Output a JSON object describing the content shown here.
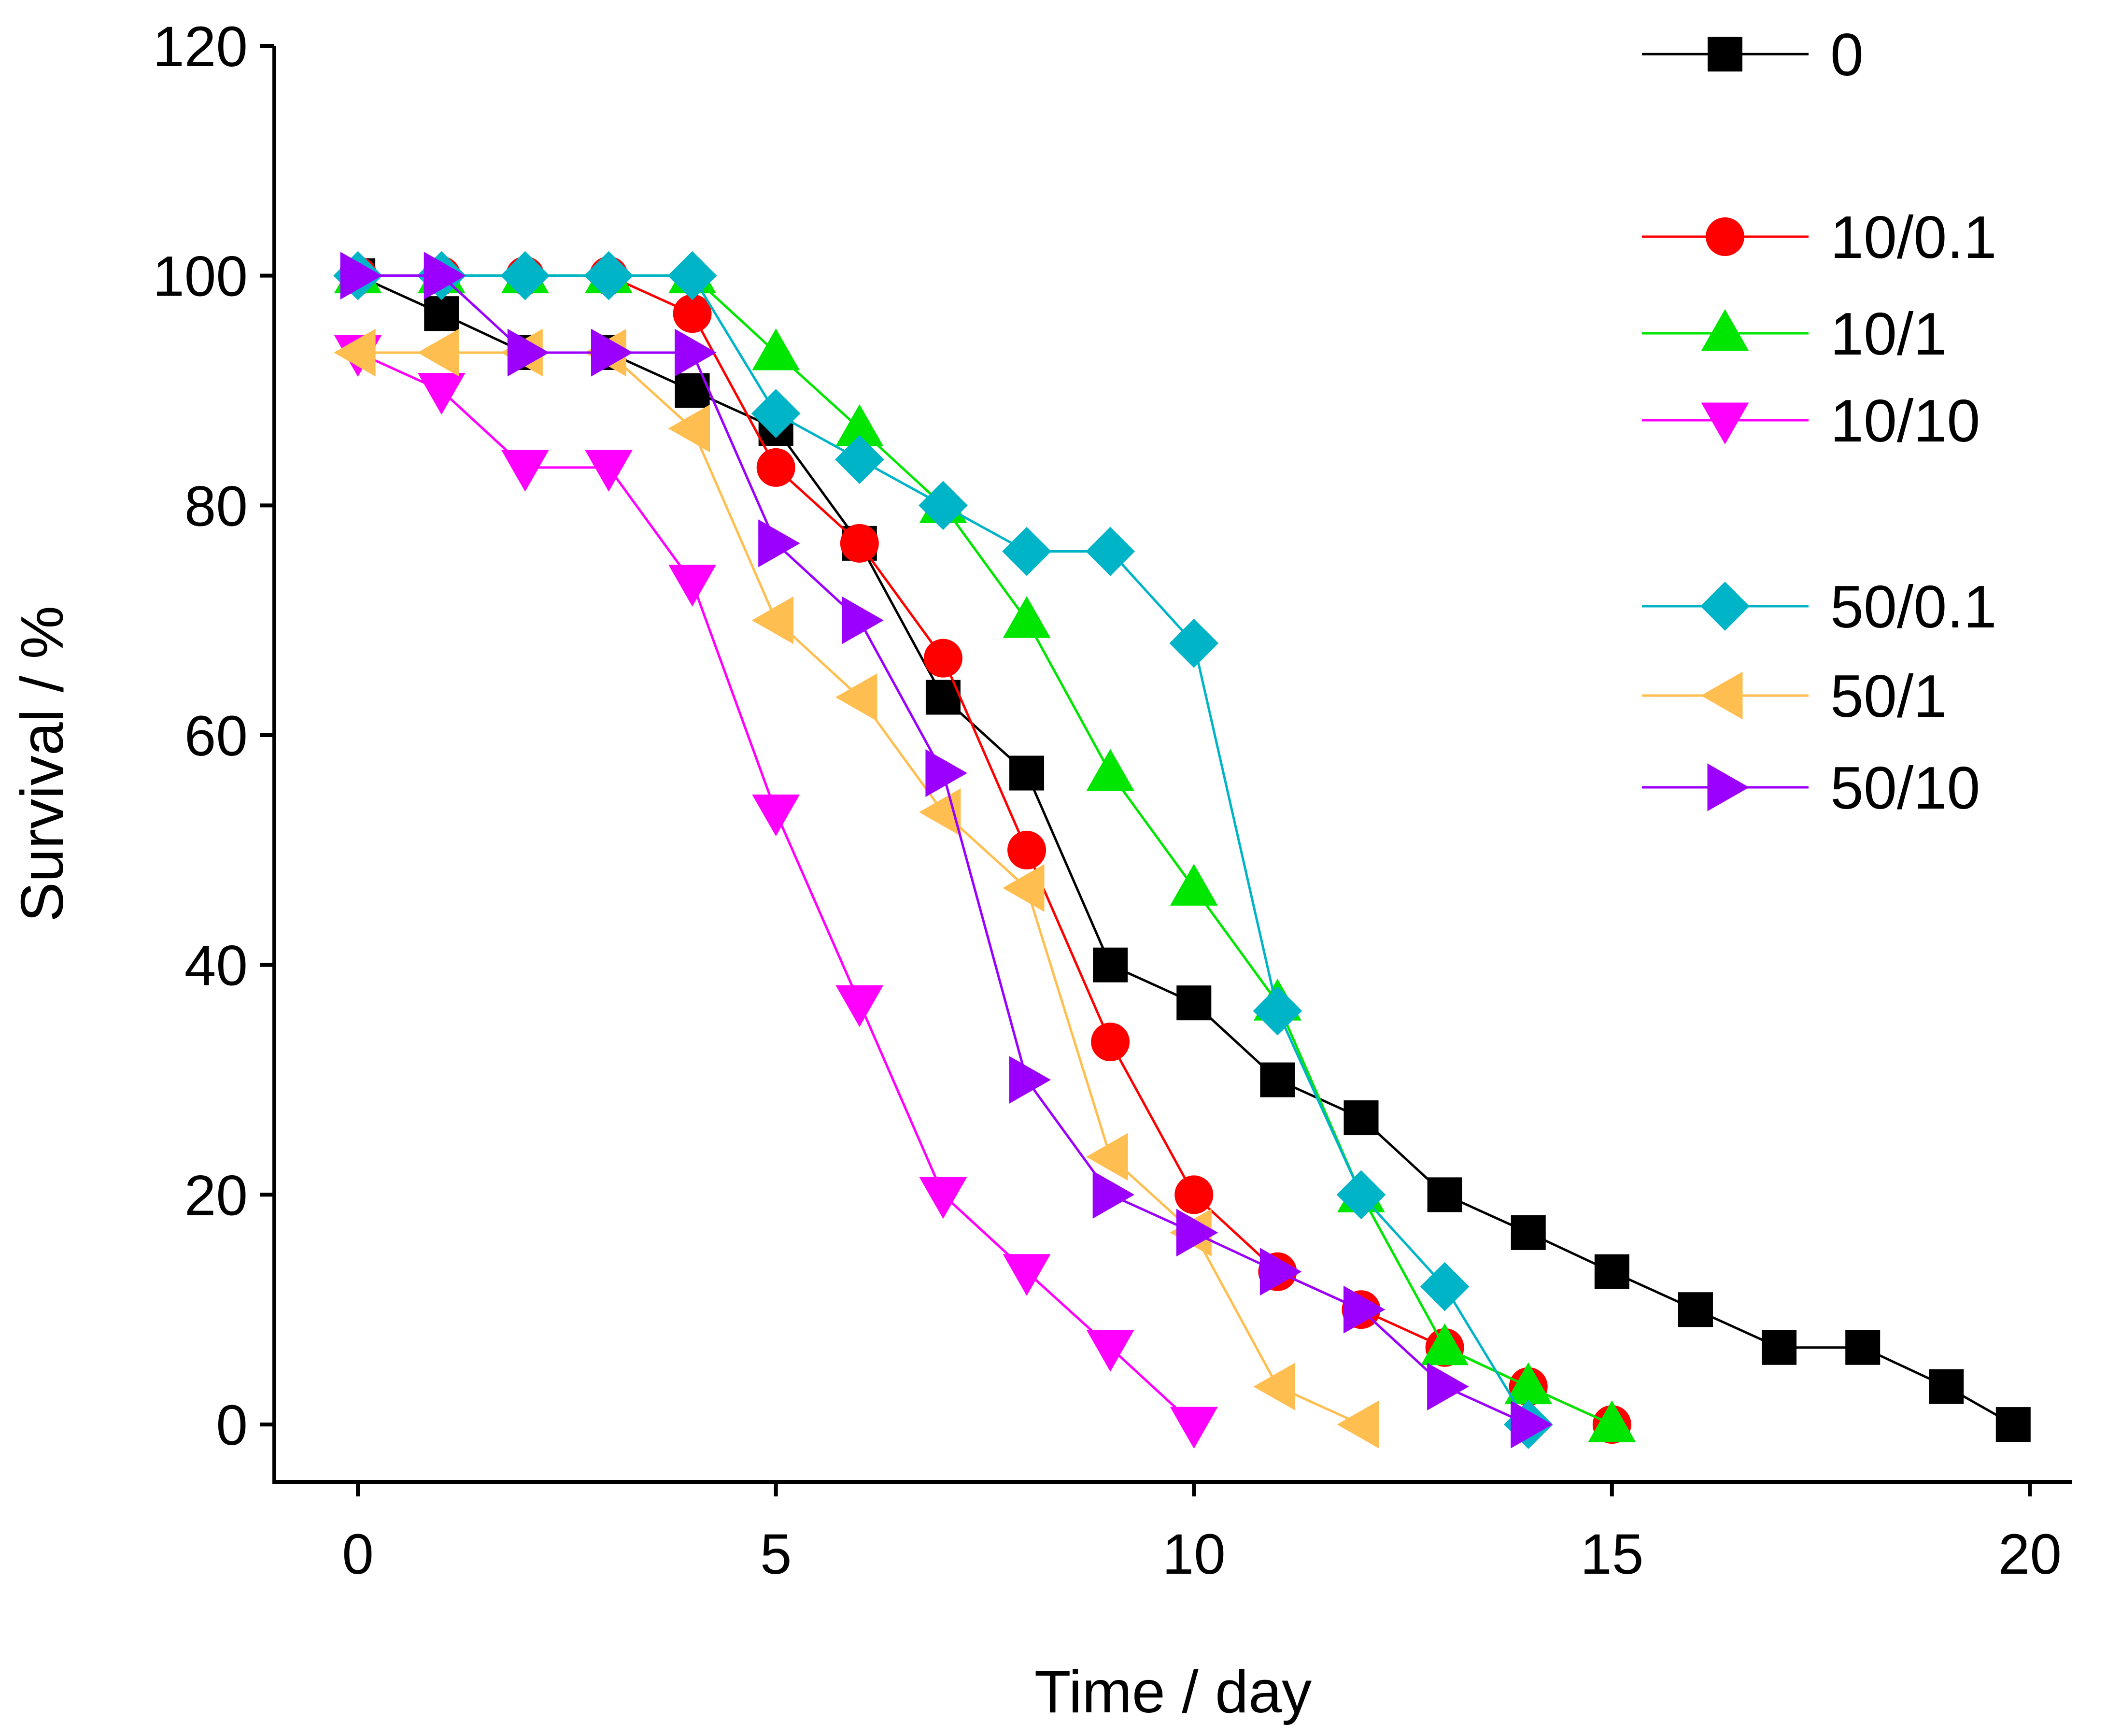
{
  "chart_data": {
    "type": "line",
    "title": "",
    "xlabel": "Time / day",
    "ylabel": "Survival / %",
    "xlim": [
      -1,
      20.5
    ],
    "ylim": [
      -5,
      120
    ],
    "xticks": [
      0,
      5,
      10,
      15,
      20
    ],
    "yticks": [
      0,
      20,
      40,
      60,
      80,
      100,
      120
    ],
    "grid": false,
    "legend_position": "top-right",
    "series": [
      {
        "name": "0",
        "color": "#000000",
        "marker": "square",
        "x": [
          0,
          1,
          2,
          3,
          4,
          5,
          6,
          7,
          8,
          9,
          10,
          11,
          12,
          13,
          14,
          15,
          16,
          17,
          18,
          19,
          19.8
        ],
        "y": [
          100,
          96.7,
          93.3,
          93.3,
          90,
          86.7,
          76.7,
          63.3,
          56.7,
          40,
          36.7,
          30,
          26.7,
          20,
          16.7,
          13.3,
          10,
          6.7,
          6.7,
          3.3,
          0
        ]
      },
      {
        "name": "10/0.1",
        "color": "#ff0000",
        "marker": "circle",
        "x": [
          0,
          1,
          2,
          3,
          4,
          5,
          6,
          7,
          8,
          9,
          10,
          11,
          12,
          13,
          14,
          15
        ],
        "y": [
          100,
          100,
          100,
          100,
          96.7,
          83.3,
          76.7,
          66.7,
          50,
          33.3,
          20,
          13.3,
          10,
          6.7,
          3.3,
          0
        ]
      },
      {
        "name": "10/1",
        "color": "#00e600",
        "marker": "triangle-up",
        "x": [
          0,
          1,
          2,
          3,
          4,
          5,
          6,
          7,
          8,
          9,
          10,
          11,
          12,
          13,
          14,
          15
        ],
        "y": [
          100,
          100,
          100,
          100,
          100,
          93.3,
          86.7,
          80,
          70,
          56.7,
          46.7,
          36.7,
          20,
          6.7,
          3.3,
          0
        ]
      },
      {
        "name": "10/10",
        "color": "#ff00ff",
        "marker": "triangle-down",
        "x": [
          0,
          1,
          2,
          3,
          4,
          5,
          6,
          7,
          8,
          9,
          10
        ],
        "y": [
          93.3,
          90,
          83.3,
          83.3,
          73.3,
          53.3,
          36.7,
          20,
          13.3,
          6.7,
          0
        ]
      },
      {
        "name": "50/0.1",
        "color": "#00b4c8",
        "marker": "diamond",
        "x": [
          0,
          1,
          2,
          3,
          4,
          5,
          6,
          7,
          8,
          9,
          10,
          11,
          12,
          13,
          14
        ],
        "y": [
          100,
          100,
          100,
          100,
          100,
          88,
          84,
          80,
          76,
          76,
          68,
          36,
          20,
          12,
          0
        ]
      },
      {
        "name": "50/1",
        "color": "#ffbe50",
        "marker": "triangle-left",
        "x": [
          0,
          1,
          2,
          3,
          4,
          5,
          6,
          7,
          8,
          9,
          10,
          11,
          12
        ],
        "y": [
          93.3,
          93.3,
          93.3,
          93.3,
          86.7,
          70,
          63.3,
          53.3,
          46.7,
          23.3,
          16.7,
          3.3,
          0
        ]
      },
      {
        "name": "50/10",
        "color": "#9b00ff",
        "marker": "triangle-right",
        "x": [
          0,
          1,
          2,
          3,
          4,
          5,
          6,
          7,
          8,
          9,
          10,
          11,
          12,
          13,
          14
        ],
        "y": [
          100,
          100,
          93.3,
          93.3,
          93.3,
          76.7,
          70,
          56.7,
          30,
          20,
          16.7,
          13.3,
          10,
          3.3,
          0
        ]
      }
    ]
  }
}
